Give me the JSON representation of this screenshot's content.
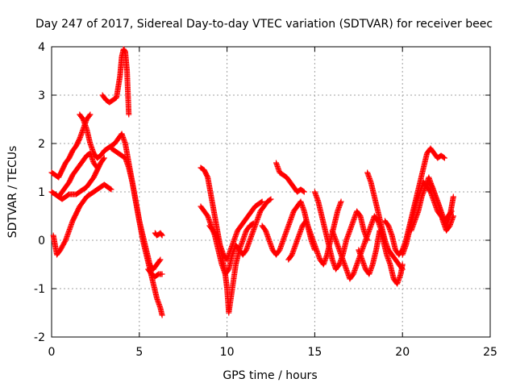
{
  "chart_data": {
    "type": "scatter",
    "title": "Day 247 of 2017, Sidereal Day-to-day VTEC variation (SDTVAR) for receiver beec",
    "xlabel": "GPS time / hours",
    "ylabel": "SDTVAR / TECUs",
    "xlim": [
      0,
      25
    ],
    "ylim": [
      -2,
      4
    ],
    "xticks": [
      0,
      5,
      10,
      15,
      20,
      25
    ],
    "yticks": [
      -2,
      -1,
      0,
      1,
      2,
      3,
      4
    ],
    "xtick_labels": [
      "0",
      "5",
      "10",
      "15",
      "20",
      "25"
    ],
    "ytick_labels": [
      "-2",
      "-1",
      "0",
      "1",
      "2",
      "3",
      "4"
    ],
    "grid": true,
    "marker": "+",
    "series": [
      {
        "name": "SDTVAR",
        "color": "#ff0000",
        "tracks": [
          {
            "x": [
              0.0,
              0.2,
              0.4,
              0.6,
              0.8,
              1.0,
              1.2,
              1.4,
              1.6,
              1.8,
              2.0,
              2.2
            ],
            "y": [
              1.4,
              1.35,
              1.3,
              1.45,
              1.6,
              1.7,
              1.85,
              1.95,
              2.1,
              2.3,
              2.5,
              2.6
            ]
          },
          {
            "x": [
              0.0,
              0.2,
              0.4,
              0.6,
              0.8,
              1.0,
              1.2,
              1.4,
              1.6,
              1.8,
              2.0,
              2.2,
              2.4,
              2.6
            ],
            "y": [
              1.0,
              0.95,
              0.9,
              1.0,
              1.1,
              1.2,
              1.35,
              1.45,
              1.55,
              1.65,
              1.75,
              1.8,
              1.6,
              1.5
            ]
          },
          {
            "x": [
              0.1,
              0.3,
              0.5,
              0.8,
              1.0,
              1.2,
              1.4,
              1.6,
              1.8,
              2.0,
              2.2,
              2.4,
              2.6,
              2.8,
              3.0,
              3.2,
              3.4
            ],
            "y": [
              0.1,
              -0.3,
              -0.2,
              0.0,
              0.2,
              0.4,
              0.55,
              0.7,
              0.8,
              0.9,
              0.95,
              1.0,
              1.05,
              1.1,
              1.15,
              1.1,
              1.05
            ]
          },
          {
            "x": [
              0.4,
              0.6,
              0.8,
              1.0,
              1.2,
              1.4,
              1.6,
              1.8,
              2.0,
              2.2,
              2.4,
              2.6,
              2.8,
              3.0
            ],
            "y": [
              0.9,
              0.85,
              0.9,
              0.95,
              0.95,
              0.95,
              1.0,
              1.05,
              1.1,
              1.2,
              1.3,
              1.45,
              1.6,
              1.7
            ]
          },
          {
            "x": [
              1.6,
              1.8,
              2.0,
              2.2,
              2.4,
              2.6,
              2.8,
              3.0,
              3.2,
              3.4,
              3.6,
              3.8,
              4.0
            ],
            "y": [
              2.6,
              2.5,
              2.3,
              2.0,
              1.8,
              1.7,
              1.75,
              1.85,
              1.9,
              1.95,
              2.0,
              2.1,
              2.2
            ]
          },
          {
            "x": [
              2.9,
              3.1,
              3.3,
              3.5,
              3.7,
              3.9,
              4.0,
              4.1,
              4.2,
              4.3,
              4.4
            ],
            "y": [
              3.0,
              2.9,
              2.85,
              2.9,
              2.95,
              3.4,
              3.8,
              3.95,
              3.9,
              3.5,
              2.6
            ]
          },
          {
            "x": [
              3.4,
              3.6,
              3.8,
              4.0,
              4.2,
              4.4,
              4.6,
              4.8,
              5.0,
              5.2,
              5.4,
              5.6,
              5.8,
              6.0,
              6.2,
              6.3
            ],
            "y": [
              1.9,
              1.85,
              1.8,
              1.75,
              1.7,
              1.5,
              1.2,
              0.8,
              0.4,
              0.0,
              -0.3,
              -0.6,
              -0.9,
              -1.2,
              -1.4,
              -1.55
            ]
          },
          {
            "x": [
              4.0,
              4.2,
              4.4,
              4.6,
              4.8,
              5.0,
              5.2,
              5.4,
              5.6,
              5.8,
              6.0,
              6.2
            ],
            "y": [
              2.2,
              2.0,
              1.6,
              1.2,
              0.8,
              0.4,
              0.1,
              -0.2,
              -0.5,
              -0.6,
              -0.5,
              -0.4
            ]
          },
          {
            "x": [
              5.9,
              6.0,
              6.1,
              6.2,
              6.3
            ],
            "y": [
              0.15,
              0.1,
              0.12,
              0.15,
              0.1
            ]
          },
          {
            "x": [
              5.5,
              5.7,
              5.9,
              6.1,
              6.3
            ],
            "y": [
              -0.6,
              -0.7,
              -0.75,
              -0.7,
              -0.7
            ]
          },
          {
            "x": [
              8.5,
              8.7,
              8.9,
              9.1,
              9.3,
              9.5,
              9.7,
              9.9,
              10.0,
              10.1,
              10.3,
              10.5,
              10.7,
              10.9,
              11.1,
              11.3,
              11.5
            ],
            "y": [
              1.5,
              1.45,
              1.3,
              0.9,
              0.5,
              0.1,
              -0.3,
              -0.7,
              -1.0,
              -1.5,
              -1.0,
              -0.5,
              -0.2,
              0.0,
              0.2,
              0.3,
              0.35
            ]
          },
          {
            "x": [
              8.5,
              8.7,
              8.9,
              9.1,
              9.3,
              9.5,
              9.7,
              9.9,
              10.1,
              10.3,
              10.5,
              10.7,
              10.9,
              11.1,
              11.3,
              11.5,
              11.7,
              11.9,
              12.1,
              12.3,
              12.5
            ],
            "y": [
              0.7,
              0.6,
              0.5,
              0.3,
              0.1,
              -0.2,
              -0.5,
              -0.7,
              -0.6,
              -0.3,
              -0.1,
              -0.2,
              -0.3,
              -0.2,
              0.0,
              0.2,
              0.4,
              0.6,
              0.7,
              0.8,
              0.85
            ]
          },
          {
            "x": [
              9.0,
              9.2,
              9.4,
              9.6,
              9.8,
              10.0,
              10.2,
              10.4,
              10.6,
              10.8,
              11.0,
              11.2,
              11.4,
              11.6,
              11.8,
              12.0
            ],
            "y": [
              0.3,
              0.2,
              0.1,
              -0.1,
              -0.3,
              -0.4,
              -0.2,
              0.0,
              0.2,
              0.3,
              0.4,
              0.5,
              0.6,
              0.7,
              0.75,
              0.8
            ]
          },
          {
            "x": [
              12.0,
              12.2,
              12.4,
              12.6,
              12.8,
              13.0,
              13.2,
              13.4,
              13.6,
              13.8,
              14.0,
              14.2,
              14.4,
              14.6,
              14.8,
              15.0
            ],
            "y": [
              0.3,
              0.2,
              0.0,
              -0.2,
              -0.3,
              -0.2,
              0.0,
              0.2,
              0.4,
              0.6,
              0.7,
              0.8,
              0.6,
              0.3,
              0.0,
              -0.2
            ]
          },
          {
            "x": [
              12.8,
              13.0,
              13.2,
              13.4,
              13.6,
              13.8,
              14.0,
              14.2,
              14.4
            ],
            "y": [
              1.6,
              1.4,
              1.35,
              1.3,
              1.2,
              1.1,
              1.0,
              1.05,
              1.0
            ]
          },
          {
            "x": [
              13.5,
              13.7,
              13.9,
              14.1,
              14.3,
              14.5,
              14.7,
              14.9,
              15.1,
              15.3,
              15.5,
              15.7,
              15.9,
              16.1,
              16.3,
              16.5
            ],
            "y": [
              -0.4,
              -0.3,
              -0.1,
              0.1,
              0.3,
              0.4,
              0.2,
              0.0,
              -0.2,
              -0.4,
              -0.5,
              -0.3,
              0.0,
              0.3,
              0.6,
              0.8
            ]
          },
          {
            "x": [
              15.0,
              15.2,
              15.4,
              15.6,
              15.8,
              16.0,
              16.2,
              16.4,
              16.6,
              16.8,
              17.0,
              17.2,
              17.4,
              17.6,
              17.8,
              18.0
            ],
            "y": [
              1.0,
              0.8,
              0.5,
              0.2,
              -0.1,
              -0.4,
              -0.6,
              -0.5,
              -0.3,
              0.0,
              0.2,
              0.4,
              0.6,
              0.5,
              0.2,
              0.0
            ]
          },
          {
            "x": [
              16.0,
              16.2,
              16.4,
              16.6,
              16.8,
              17.0,
              17.2,
              17.4,
              17.6,
              17.8,
              18.0,
              18.2,
              18.4,
              18.6,
              18.8,
              19.0
            ],
            "y": [
              0.2,
              0.0,
              -0.2,
              -0.4,
              -0.6,
              -0.8,
              -0.7,
              -0.5,
              -0.3,
              -0.1,
              0.1,
              0.3,
              0.5,
              0.4,
              0.2,
              0.0
            ]
          },
          {
            "x": [
              17.5,
              17.7,
              17.9,
              18.1,
              18.3,
              18.5,
              18.7,
              18.9,
              19.1,
              19.3,
              19.5,
              19.7,
              19.9,
              20.0
            ],
            "y": [
              -0.2,
              -0.4,
              -0.6,
              -0.7,
              -0.5,
              -0.2,
              0.2,
              0.0,
              -0.3,
              -0.5,
              -0.8,
              -0.9,
              -0.7,
              -0.5
            ]
          },
          {
            "x": [
              18.0,
              18.2,
              18.4,
              18.6,
              18.8,
              19.0,
              19.2,
              19.4,
              19.6,
              19.8,
              20.0
            ],
            "y": [
              1.4,
              1.2,
              0.9,
              0.6,
              0.3,
              0.0,
              -0.2,
              -0.3,
              -0.4,
              -0.5,
              -0.6
            ]
          },
          {
            "x": [
              19.0,
              19.2,
              19.4,
              19.6,
              19.8,
              20.0,
              20.2,
              20.4,
              20.6,
              20.8,
              21.0,
              21.2,
              21.4,
              21.6,
              21.8,
              22.0,
              22.2,
              22.4
            ],
            "y": [
              0.4,
              0.3,
              0.1,
              -0.2,
              -0.3,
              -0.2,
              0.0,
              0.3,
              0.6,
              0.9,
              1.2,
              1.5,
              1.8,
              1.9,
              1.8,
              1.7,
              1.75,
              1.7
            ]
          },
          {
            "x": [
              20.0,
              20.2,
              20.4,
              20.6,
              20.8,
              21.0,
              21.2,
              21.4,
              21.6,
              21.8,
              22.0,
              22.2,
              22.4,
              22.6,
              22.8
            ],
            "y": [
              -0.3,
              -0.1,
              0.2,
              0.5,
              0.8,
              1.0,
              1.2,
              1.1,
              1.0,
              0.8,
              0.6,
              0.5,
              0.4,
              0.5,
              0.6
            ]
          },
          {
            "x": [
              20.5,
              20.7,
              20.9,
              21.1,
              21.3,
              21.5,
              21.7,
              21.9,
              22.1,
              22.3,
              22.5,
              22.7,
              22.9
            ],
            "y": [
              0.2,
              0.4,
              0.6,
              0.9,
              1.1,
              1.3,
              1.1,
              0.9,
              0.7,
              0.4,
              0.2,
              0.3,
              0.5
            ]
          },
          {
            "x": [
              21.5,
              21.7,
              21.9,
              22.1,
              22.3,
              22.5,
              22.7,
              22.9
            ],
            "y": [
              1.2,
              1.1,
              0.9,
              0.7,
              0.5,
              0.3,
              0.5,
              0.9
            ]
          }
        ]
      }
    ]
  }
}
